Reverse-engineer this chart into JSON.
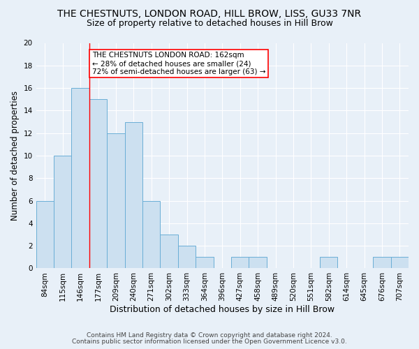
{
  "title1": "THE CHESTNUTS, LONDON ROAD, HILL BROW, LISS, GU33 7NR",
  "title2": "Size of property relative to detached houses in Hill Brow",
  "xlabel": "Distribution of detached houses by size in Hill Brow",
  "ylabel": "Number of detached properties",
  "footer1": "Contains HM Land Registry data © Crown copyright and database right 2024.",
  "footer2": "Contains public sector information licensed under the Open Government Licence v3.0.",
  "bar_labels": [
    "84sqm",
    "115sqm",
    "146sqm",
    "177sqm",
    "209sqm",
    "240sqm",
    "271sqm",
    "302sqm",
    "333sqm",
    "364sqm",
    "396sqm",
    "427sqm",
    "458sqm",
    "489sqm",
    "520sqm",
    "551sqm",
    "582sqm",
    "614sqm",
    "645sqm",
    "676sqm",
    "707sqm"
  ],
  "bar_values": [
    6,
    10,
    16,
    15,
    12,
    13,
    6,
    3,
    2,
    1,
    0,
    1,
    1,
    0,
    0,
    0,
    1,
    0,
    0,
    1,
    1
  ],
  "bar_color": "#cce0f0",
  "bar_edge_color": "#6aaed6",
  "annotation_text": "THE CHESTNUTS LONDON ROAD: 162sqm\n← 28% of detached houses are smaller (24)\n72% of semi-detached houses are larger (63) →",
  "annotation_box_color": "white",
  "annotation_box_edge_color": "red",
  "red_line_x": 2.5,
  "ylim": [
    0,
    20
  ],
  "yticks": [
    0,
    2,
    4,
    6,
    8,
    10,
    12,
    14,
    16,
    18,
    20
  ],
  "bg_color": "#e8f0f8",
  "plot_bg_color": "#e8f0f8",
  "grid_color": "white",
  "title1_fontsize": 10,
  "title2_fontsize": 9,
  "xlabel_fontsize": 9,
  "ylabel_fontsize": 8.5,
  "footer_fontsize": 6.5,
  "tick_fontsize": 7.5,
  "annot_fontsize": 7.5
}
